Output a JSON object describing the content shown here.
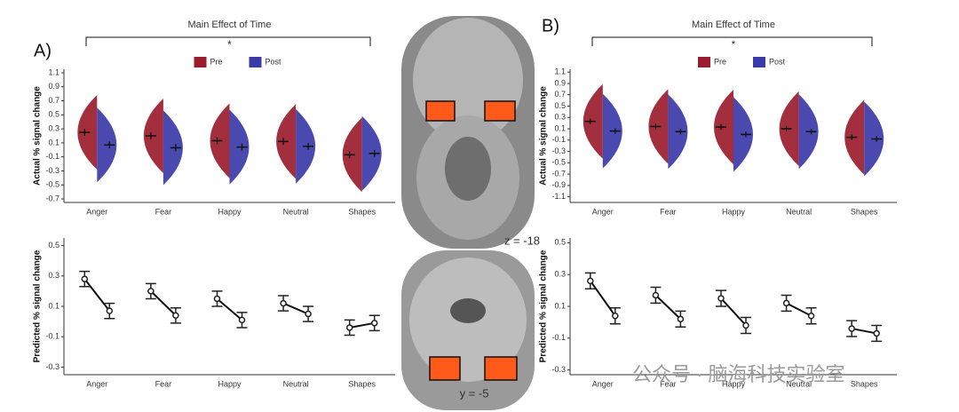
{
  "panels": {
    "a": "A)",
    "b": "B)"
  },
  "brain": {
    "axial_label": "z = -18",
    "coronal_label": "y = -5"
  },
  "watermark": "公众号 · 脑海科技实验室",
  "chart_data": [
    {
      "type": "raincloud",
      "annotation": "Main Effect of Time",
      "significance": "*",
      "y_label": "Actual % signal change",
      "categories": [
        "Anger",
        "Fear",
        "Happy",
        "Neutral",
        "Shapes"
      ],
      "series": [
        {
          "name": "Pre",
          "color": "#9b1c2c",
          "values": [
            0.25,
            0.2,
            0.13,
            0.12,
            -0.07
          ],
          "errors": [
            0.05,
            0.05,
            0.05,
            0.05,
            0.05
          ]
        },
        {
          "name": "Post",
          "color": "#3a3aa8",
          "values": [
            0.07,
            0.03,
            0.04,
            0.05,
            -0.05
          ],
          "errors": [
            0.05,
            0.05,
            0.05,
            0.05,
            0.05
          ]
        }
      ],
      "ylim": [
        -0.75,
        1.15
      ],
      "yticks": [
        -0.7,
        -0.5,
        -0.3,
        -0.1,
        0.1,
        0.3,
        0.5,
        0.7,
        0.9,
        1.1
      ],
      "legend": "top"
    },
    {
      "type": "line",
      "y_label": "Predicted % signal change",
      "categories": [
        "Anger",
        "Fear",
        "Happy",
        "Neutral",
        "Shapes"
      ],
      "series": [
        {
          "name": "Pre",
          "color": "#222222",
          "values": [
            0.28,
            0.2,
            0.15,
            0.12,
            -0.04
          ],
          "errors": [
            0.05,
            0.05,
            0.05,
            0.05,
            0.05
          ]
        },
        {
          "name": "Post",
          "color": "#222222",
          "values": [
            0.07,
            0.04,
            0.01,
            0.05,
            -0.01
          ],
          "errors": [
            0.05,
            0.05,
            0.05,
            0.05,
            0.05
          ]
        }
      ],
      "ylim": [
        -0.35,
        0.55
      ],
      "yticks": [
        -0.3,
        -0.1,
        0.1,
        0.3,
        0.5
      ]
    },
    {
      "type": "raincloud",
      "annotation": "Main Effect of Time",
      "significance": "*",
      "y_label": "Actual % signal change",
      "categories": [
        "Anger",
        "Fear",
        "Happy",
        "Neutral",
        "Shapes"
      ],
      "series": [
        {
          "name": "Pre",
          "color": "#9b1c2c",
          "values": [
            0.23,
            0.14,
            0.13,
            0.1,
            -0.05
          ],
          "errors": [
            0.05,
            0.05,
            0.05,
            0.05,
            0.05
          ]
        },
        {
          "name": "Post",
          "color": "#3a3aa8",
          "values": [
            0.06,
            0.05,
            0.0,
            0.05,
            -0.08
          ],
          "errors": [
            0.05,
            0.05,
            0.05,
            0.05,
            0.05
          ]
        }
      ],
      "ylim": [
        -1.2,
        1.15
      ],
      "yticks": [
        -1.1,
        -0.9,
        -0.7,
        -0.5,
        -0.3,
        -0.1,
        0.1,
        0.3,
        0.5,
        0.7,
        0.9,
        1.1
      ],
      "legend": "top"
    },
    {
      "type": "line",
      "y_label": "Predicted % signal change",
      "categories": [
        "Anger",
        "Fear",
        "Happy",
        "Neutral",
        "Shapes"
      ],
      "series": [
        {
          "name": "Pre",
          "color": "#222222",
          "values": [
            0.26,
            0.17,
            0.15,
            0.12,
            -0.04
          ],
          "errors": [
            0.05,
            0.05,
            0.05,
            0.05,
            0.05
          ]
        },
        {
          "name": "Post",
          "color": "#222222",
          "values": [
            0.04,
            0.02,
            -0.02,
            0.04,
            -0.07
          ],
          "errors": [
            0.05,
            0.05,
            0.05,
            0.05,
            0.05
          ]
        }
      ],
      "ylim": [
        -0.33,
        0.53
      ],
      "yticks": [
        -0.3,
        -0.1,
        0.1,
        0.3,
        0.5
      ]
    }
  ]
}
